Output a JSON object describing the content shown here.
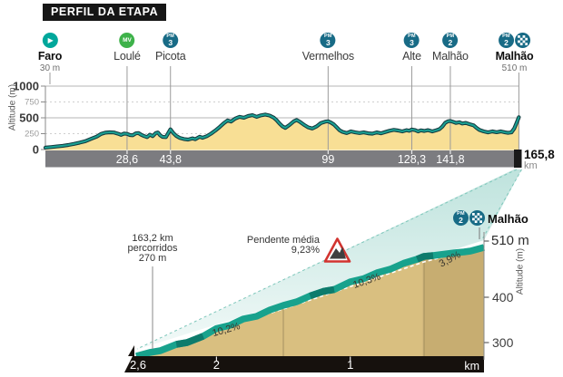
{
  "title": "PERFIL DA ETAPA",
  "colors": {
    "start_teal": "#00a79b",
    "mv_green": "#3eb24a",
    "pm_blue": "#186b86",
    "profile_line": "#1ba093",
    "profile_outline": "#143a3e",
    "profile_fill": "#f8df95",
    "axis_band_gray": "#7c7c80",
    "tan": "#d9bf80",
    "teal_band": "#18a28d",
    "teal_band_dark": "#0d7b6c",
    "band_black": "#16110d",
    "red": "#d23430",
    "cone": "#7ec7bb"
  },
  "markers": [
    {
      "name": "Faro",
      "sub": "30 m",
      "km": 0,
      "bold": true,
      "badges": [
        {
          "type": "start"
        }
      ]
    },
    {
      "name": "Loulé",
      "km": 28.6,
      "badges": [
        {
          "type": "mv",
          "text": "MV"
        }
      ]
    },
    {
      "name": "Picota",
      "km": 43.8,
      "badges": [
        {
          "type": "pm",
          "text": "PM",
          "num": "3"
        }
      ]
    },
    {
      "name": "Vermelhos",
      "km": 99,
      "badges": [
        {
          "type": "pm",
          "text": "PM",
          "num": "3"
        }
      ]
    },
    {
      "name": "Alte",
      "km": 128.3,
      "badges": [
        {
          "type": "pm",
          "text": "PM",
          "num": "3"
        }
      ]
    },
    {
      "name": "Malhão",
      "km": 141.8,
      "badges": [
        {
          "type": "pm",
          "text": "PM",
          "num": "2"
        }
      ]
    },
    {
      "name": "Malhão",
      "sub": "510 m",
      "km": 165.8,
      "bold": true,
      "badges": [
        {
          "type": "pm",
          "text": "PM",
          "num": "2"
        },
        {
          "type": "finish"
        }
      ]
    }
  ],
  "chart_data": [
    {
      "type": "area",
      "name": "stage-elevation-profile",
      "ylabel": "Altitude (m)",
      "x_unit": "km",
      "xlim": [
        0,
        165.8
      ],
      "ylim": [
        0,
        1000
      ],
      "yticks": [
        0,
        250,
        500,
        750,
        1000
      ],
      "xticks": [
        28.6,
        43.8,
        99,
        128.3,
        141.8
      ],
      "xtick_labels": [
        "28,6",
        "43,8",
        "99",
        "128,3",
        "141,8"
      ],
      "end_label": "165,8",
      "points": [
        [
          0,
          30
        ],
        [
          2,
          38
        ],
        [
          4,
          48
        ],
        [
          6,
          58
        ],
        [
          8,
          72
        ],
        [
          10,
          88
        ],
        [
          12,
          108
        ],
        [
          14,
          132
        ],
        [
          16,
          168
        ],
        [
          18,
          205
        ],
        [
          19.5,
          245
        ],
        [
          21,
          265
        ],
        [
          22.5,
          272
        ],
        [
          24,
          268
        ],
        [
          25.5,
          248
        ],
        [
          26.5,
          232
        ],
        [
          27.5,
          252
        ],
        [
          28.6,
          247
        ],
        [
          29.6,
          228
        ],
        [
          30.6,
          224
        ],
        [
          31.6,
          255
        ],
        [
          32.6,
          260
        ],
        [
          33.6,
          232
        ],
        [
          34.6,
          212
        ],
        [
          35.6,
          196
        ],
        [
          36.6,
          235
        ],
        [
          37.6,
          212
        ],
        [
          38.6,
          258
        ],
        [
          39.4,
          268
        ],
        [
          40.2,
          224
        ],
        [
          41,
          200
        ],
        [
          42.2,
          196
        ],
        [
          43.8,
          318
        ],
        [
          44.8,
          258
        ],
        [
          45.8,
          215
        ],
        [
          47,
          185
        ],
        [
          48.5,
          165
        ],
        [
          50,
          157
        ],
        [
          51.5,
          176
        ],
        [
          52.5,
          163
        ],
        [
          54,
          202
        ],
        [
          55,
          186
        ],
        [
          56.5,
          210
        ],
        [
          58,
          250
        ],
        [
          59.5,
          298
        ],
        [
          61,
          355
        ],
        [
          62.5,
          415
        ],
        [
          63.8,
          458
        ],
        [
          65,
          442
        ],
        [
          66.5,
          488
        ],
        [
          68,
          515
        ],
        [
          69.5,
          502
        ],
        [
          71,
          528
        ],
        [
          72.5,
          542
        ],
        [
          74,
          515
        ],
        [
          75.5,
          538
        ],
        [
          77,
          552
        ],
        [
          78.5,
          535
        ],
        [
          80,
          502
        ],
        [
          81,
          462
        ],
        [
          82,
          408
        ],
        [
          83,
          365
        ],
        [
          84,
          342
        ],
        [
          85.5,
          388
        ],
        [
          87,
          446
        ],
        [
          88,
          466
        ],
        [
          89,
          440
        ],
        [
          90.5,
          392
        ],
        [
          92,
          350
        ],
        [
          93.5,
          332
        ],
        [
          95,
          365
        ],
        [
          96.5,
          418
        ],
        [
          98,
          440
        ],
        [
          99,
          446
        ],
        [
          100,
          425
        ],
        [
          101,
          395
        ],
        [
          102,
          350
        ],
        [
          103,
          305
        ],
        [
          104,
          278
        ],
        [
          105.5,
          260
        ],
        [
          107,
          286
        ],
        [
          108.5,
          270
        ],
        [
          110,
          260
        ],
        [
          111.5,
          270
        ],
        [
          113,
          256
        ],
        [
          114.5,
          250
        ],
        [
          116,
          270
        ],
        [
          117.5,
          256
        ],
        [
          119,
          276
        ],
        [
          120.5,
          296
        ],
        [
          122,
          310
        ],
        [
          123.5,
          300
        ],
        [
          125,
          286
        ],
        [
          126.5,
          306
        ],
        [
          127.4,
          296
        ],
        [
          128.3,
          316
        ],
        [
          129.5,
          306
        ],
        [
          130.5,
          286
        ],
        [
          131.5,
          303
        ],
        [
          132.7,
          293
        ],
        [
          134,
          306
        ],
        [
          135.5,
          286
        ],
        [
          137,
          306
        ],
        [
          138,
          322
        ],
        [
          139,
          362
        ],
        [
          140,
          422
        ],
        [
          141,
          446
        ],
        [
          141.8,
          450
        ],
        [
          142.8,
          436
        ],
        [
          143.8,
          420
        ],
        [
          145,
          430
        ],
        [
          146,
          410
        ],
        [
          147.2,
          420
        ],
        [
          148.5,
          400
        ],
        [
          150,
          380
        ],
        [
          151,
          340
        ],
        [
          152,
          308
        ],
        [
          153.5,
          286
        ],
        [
          155,
          270
        ],
        [
          156.5,
          286
        ],
        [
          158,
          273
        ],
        [
          159.5,
          286
        ],
        [
          161,
          270
        ],
        [
          162,
          263
        ],
        [
          163.2,
          270
        ],
        [
          164.2,
          335
        ],
        [
          165,
          420
        ],
        [
          165.8,
          510
        ]
      ]
    },
    {
      "type": "area",
      "name": "final-climb-zoom",
      "ylabel": "Altitude (m)",
      "x_unit": "km",
      "x_axis": "km_to_go",
      "xlim": [
        2.6,
        0
      ],
      "yticks": [
        300,
        400
      ],
      "peak_label": "510 m",
      "xticks": [
        2.6,
        2,
        1
      ],
      "xtick_labels": [
        "2,6",
        "2",
        "1"
      ],
      "segments": [
        {
          "from_km": 2.6,
          "to_km": 1.5,
          "grade": "10,2%"
        },
        {
          "from_km": 1.5,
          "to_km": 0.45,
          "grade": "10,3%"
        },
        {
          "from_km": 0.45,
          "to_km": 0,
          "grade": "3,9%"
        }
      ],
      "avg_grade_label": [
        "Pendente média",
        "9,23%"
      ],
      "progress_note": [
        "163,2 km",
        "percorridos",
        "270 m"
      ],
      "finish_name": "Malhão",
      "finish_badges": [
        {
          "type": "pm",
          "text": "PM",
          "num": "2"
        },
        {
          "type": "finish"
        }
      ],
      "points": [
        [
          2.6,
          270
        ],
        [
          2.5,
          278
        ],
        [
          2.42,
          282
        ],
        [
          2.3,
          296
        ],
        [
          2.22,
          300
        ],
        [
          2.1,
          314
        ],
        [
          2.0,
          331
        ],
        [
          1.9,
          338
        ],
        [
          1.8,
          352
        ],
        [
          1.7,
          358
        ],
        [
          1.6,
          372
        ],
        [
          1.5,
          382
        ],
        [
          1.4,
          390
        ],
        [
          1.3,
          403
        ],
        [
          1.2,
          413
        ],
        [
          1.12,
          417
        ],
        [
          1.0,
          434
        ],
        [
          0.9,
          441
        ],
        [
          0.8,
          454
        ],
        [
          0.7,
          462
        ],
        [
          0.6,
          475
        ],
        [
          0.5,
          484
        ],
        [
          0.45,
          490
        ],
        [
          0.38,
          492
        ],
        [
          0.3,
          495
        ],
        [
          0.22,
          498
        ],
        [
          0.15,
          500
        ],
        [
          0.1,
          502
        ],
        [
          0.05,
          506
        ],
        [
          0,
          510
        ]
      ]
    }
  ]
}
